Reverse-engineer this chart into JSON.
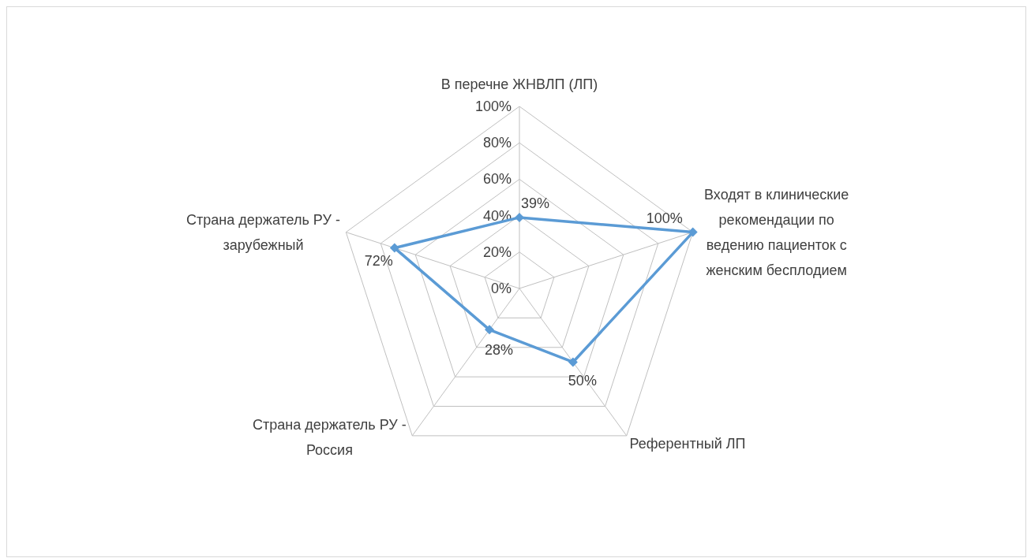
{
  "chart_data": {
    "type": "radar",
    "categories": [
      "В перечне ЖНВЛП (ЛП)",
      "Входят в клинические рекомендации по ведению пациенток с женским бесплодием",
      "Референтный ЛП",
      "Страна держатель РУ - Россия",
      "Страна держатель РУ - зарубежный"
    ],
    "series": [
      {
        "color": "#5b9bd5",
        "values": [
          39,
          100,
          50,
          28,
          72
        ],
        "value_labels": [
          "39%",
          "100%",
          "50%",
          "28%",
          "72%"
        ]
      }
    ],
    "ylim": [
      0,
      100
    ],
    "yticks": [
      {
        "value": 0,
        "label": "0%"
      },
      {
        "value": 20,
        "label": "20%"
      },
      {
        "value": 40,
        "label": "40%"
      },
      {
        "value": 60,
        "label": "60%"
      },
      {
        "value": 80,
        "label": "80%"
      },
      {
        "value": 100,
        "label": "100%"
      }
    ],
    "grid": true,
    "marker": "diamond",
    "line_style": "solid"
  }
}
